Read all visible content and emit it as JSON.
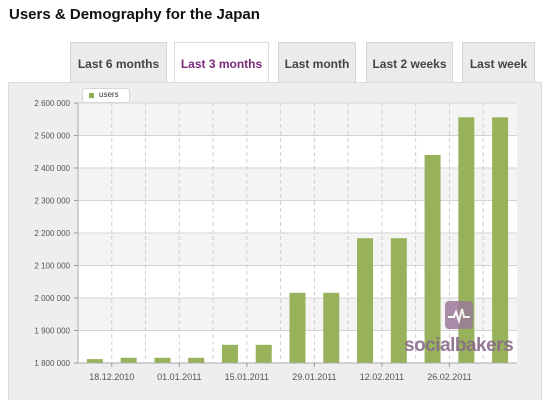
{
  "page": {
    "title": "Users & Demography for the Japan"
  },
  "tabs": [
    {
      "label": "Last 6 months",
      "active": false
    },
    {
      "label": "Last 3 months",
      "active": true
    },
    {
      "label": "Last month",
      "active": false
    },
    {
      "label": "Last 2 weeks",
      "active": false
    },
    {
      "label": "Last week",
      "active": false
    }
  ],
  "brand": {
    "text": "socialbakers",
    "icon": "heartbeat-logo-icon"
  },
  "colors": {
    "bar": "#97b25b",
    "active_tab_text": "#7a2a7a",
    "panel_bg": "#eeeeee"
  },
  "chart_data": {
    "type": "bar",
    "legend": [
      "users"
    ],
    "legend_position": "top-left",
    "grid": true,
    "ylim": [
      1800000,
      2600000
    ],
    "y_ticks": [
      "1 800 000",
      "1 900 000",
      "2 000 000",
      "2 100 000",
      "2 200 000",
      "2 300 000",
      "2 400 000",
      "2 500 000",
      "2 600 000"
    ],
    "x_tick_labels": [
      "18.12.2010",
      "01.01.2011",
      "15.01.2011",
      "29.01.2011",
      "12.02.2011",
      "26.02.2011"
    ],
    "series": [
      {
        "name": "users",
        "values": [
          1812000,
          1816000,
          1816000,
          1816000,
          1856000,
          1856000,
          2016000,
          2016000,
          2184000,
          2184000,
          2440000,
          2556000,
          2556000
        ]
      }
    ]
  }
}
